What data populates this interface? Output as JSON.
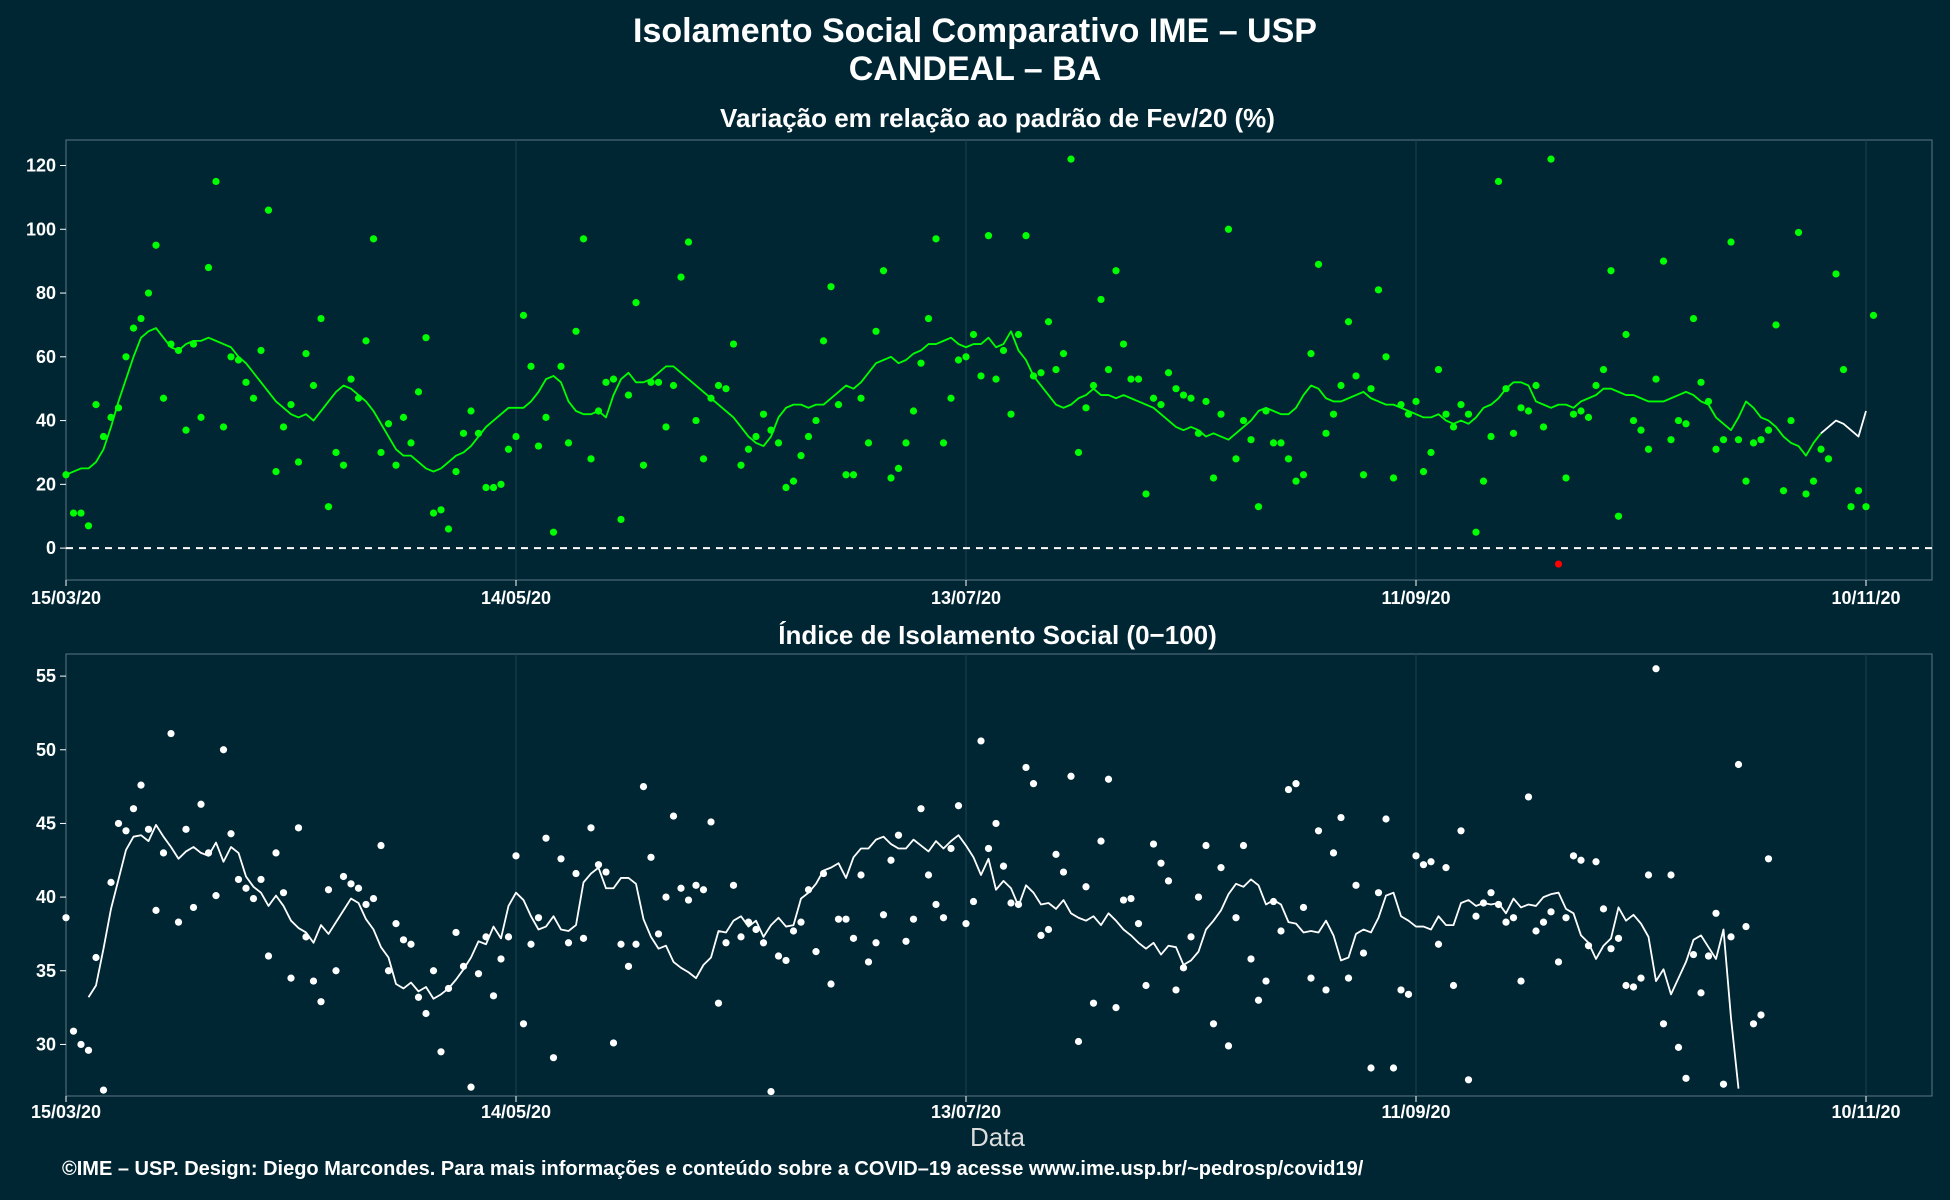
{
  "header": {
    "title_line1": "Isolamento Social Comparativo IME – USP",
    "title_line2": "CANDEAL – BA"
  },
  "footer": {
    "xlabel": "Data",
    "caption": "©IME – USP. Design: Diego Marcondes. Para mais informações e conteúdo sobre a COVID–19 acesse www.ime.usp.br/~pedrosp/covid19/"
  },
  "colors": {
    "background": "#002633",
    "positive": "#00ff00",
    "negative": "#ff0000",
    "index": "#ffffff",
    "grid": "#1c4350",
    "reference_line": "#ffffff"
  },
  "chart_data": [
    {
      "type": "scatter",
      "title": "Variação em relação ao padrão de Fev/20 (%)",
      "xlabel": "",
      "ylabel": "",
      "x_start": "15/03/20",
      "x_tick_labels": [
        "15/03/20",
        "14/05/20",
        "13/07/20",
        "11/09/20",
        "10/11/20"
      ],
      "x_tick_day_offsets": [
        0,
        60,
        120,
        180,
        240
      ],
      "ylim": [
        -10,
        128
      ],
      "y_ticks": [
        0,
        20,
        40,
        60,
        80,
        100,
        120
      ],
      "reference_line_y": 0,
      "grid": "vertical",
      "series": [
        {
          "kind": "points",
          "values": [
            23,
            11,
            11,
            7,
            45,
            35,
            41,
            44,
            60,
            69,
            72,
            80,
            95,
            47,
            64,
            62,
            37,
            64,
            41,
            88,
            115,
            38,
            60,
            59,
            52,
            47,
            62,
            106,
            24,
            38,
            45,
            27,
            61,
            51,
            72,
            13,
            30,
            26,
            53,
            47,
            65,
            97,
            30,
            39,
            26,
            41,
            33,
            49,
            66,
            11,
            12,
            6,
            24,
            36,
            43,
            36,
            19,
            19,
            20,
            31,
            35,
            73,
            57,
            32,
            41,
            5,
            57,
            33,
            68,
            97,
            28,
            43,
            52,
            53,
            9,
            48,
            77,
            26,
            52,
            52,
            38,
            51,
            85,
            96,
            40,
            28,
            47,
            51,
            50,
            64,
            26,
            31,
            35,
            42,
            37,
            33,
            19,
            21,
            29,
            35,
            40,
            65,
            82,
            45,
            23,
            23,
            47,
            33,
            68,
            87,
            22,
            25,
            33,
            43,
            58,
            72,
            97,
            33,
            47,
            59,
            60,
            67,
            54,
            98,
            53,
            62,
            42,
            67,
            98,
            54,
            55,
            71,
            56,
            61,
            122,
            30,
            44,
            51,
            78,
            56,
            87,
            64,
            53,
            53,
            17,
            47,
            45,
            55,
            50,
            48,
            47,
            36,
            46,
            22,
            42,
            100,
            28,
            40,
            34,
            13,
            43,
            33,
            33,
            28,
            21,
            23,
            61,
            89,
            36,
            42,
            51,
            71,
            54,
            23,
            50,
            81,
            60,
            22,
            45,
            42,
            46,
            24,
            30,
            56,
            42,
            38,
            45,
            42,
            5,
            21,
            35,
            115,
            50,
            36,
            44,
            43,
            51,
            38,
            122,
            -5,
            22,
            42,
            43,
            41,
            51,
            56,
            87,
            10,
            67,
            40,
            37,
            31,
            53,
            90,
            34,
            40,
            39,
            72,
            52,
            46,
            31,
            34,
            96,
            34,
            21,
            33,
            34,
            37,
            70,
            18,
            40,
            99,
            17,
            21,
            31,
            28,
            86,
            56,
            13,
            18,
            13,
            73
          ],
          "color": "#00ff00",
          "negative_color": "#ff0000"
        },
        {
          "kind": "line",
          "values": [
            23,
            24,
            25,
            25,
            27,
            31,
            38,
            46,
            53,
            60,
            66,
            68,
            69,
            66,
            63,
            62,
            64,
            65,
            65,
            66,
            65,
            64,
            63,
            60,
            58,
            55,
            52,
            49,
            46,
            44,
            42,
            41,
            42,
            40,
            43,
            46,
            49,
            51,
            50,
            48,
            46,
            43,
            39,
            35,
            31,
            29,
            29,
            27,
            25,
            24,
            25,
            27,
            29,
            30,
            32,
            35,
            38,
            40,
            42,
            44,
            44,
            44,
            46,
            49,
            53,
            54,
            52,
            46,
            43,
            42,
            42,
            43,
            41,
            48,
            53,
            55,
            52,
            52,
            53,
            55,
            57,
            57,
            55,
            53,
            51,
            49,
            47,
            45,
            43,
            41,
            38,
            35,
            33,
            32,
            35,
            41,
            44,
            45,
            45,
            44,
            45,
            45,
            47,
            49,
            51,
            50,
            52,
            55,
            58,
            59,
            60,
            58,
            59,
            61,
            62,
            64,
            64,
            65,
            66,
            64,
            63,
            64,
            64,
            66,
            63,
            64,
            68,
            62,
            59,
            54,
            51,
            48,
            45,
            44,
            45,
            47,
            48,
            50,
            48,
            48,
            47,
            48,
            47,
            46,
            45,
            44,
            42,
            40,
            38,
            37,
            38,
            37,
            35,
            36,
            35,
            34,
            36,
            38,
            40,
            43,
            44,
            43,
            42,
            42,
            44,
            48,
            51,
            50,
            47,
            46,
            46,
            47,
            48,
            49,
            47,
            46,
            45,
            45,
            44,
            43,
            42,
            41,
            41,
            42,
            40,
            39,
            40,
            39,
            41,
            44,
            45,
            47,
            50,
            52,
            52,
            51,
            46,
            45,
            44,
            45,
            45,
            44,
            46,
            47,
            48,
            50,
            50,
            49,
            48,
            48,
            47,
            46,
            46,
            46,
            47,
            48,
            49,
            48,
            46,
            45,
            41,
            39,
            37,
            41,
            46,
            44,
            41,
            40,
            38,
            35,
            33,
            32,
            29,
            33,
            36,
            38,
            40,
            39,
            37,
            35,
            43
          ],
          "color": "#00ff00",
          "tail_color": "#ffffff",
          "tail_points": 7
        }
      ]
    },
    {
      "type": "scatter",
      "title": "Índice de Isolamento Social (0−100)",
      "xlabel": "Data",
      "ylabel": "",
      "x_start": "15/03/20",
      "x_tick_labels": [
        "15/03/20",
        "14/05/20",
        "13/07/20",
        "11/09/20",
        "10/11/20"
      ],
      "x_tick_day_offsets": [
        0,
        60,
        120,
        180,
        240
      ],
      "ylim": [
        26.5,
        56.5
      ],
      "y_ticks": [
        30,
        35,
        40,
        45,
        50,
        55
      ],
      "grid": "vertical",
      "series": [
        {
          "kind": "points",
          "values": [
            38.6,
            30.9,
            30.0,
            29.6,
            35.9,
            26.9,
            41.0,
            45.0,
            44.5,
            46.0,
            47.6,
            44.6,
            39.1,
            43.0,
            51.1,
            38.3,
            44.6,
            39.3,
            46.3,
            43.0,
            40.1,
            50.0,
            44.3,
            41.2,
            40.6,
            39.9,
            41.2,
            36.0,
            43.0,
            40.3,
            34.5,
            44.7,
            37.3,
            34.3,
            32.9,
            40.5,
            35.0,
            41.4,
            40.9,
            40.6,
            39.5,
            39.9,
            43.5,
            35.0,
            38.2,
            37.1,
            36.8,
            33.2,
            32.1,
            35.0,
            29.5,
            33.8,
            37.6,
            35.3,
            27.1,
            34.8,
            37.3,
            33.3,
            35.8,
            37.3,
            42.8,
            31.4,
            36.8,
            38.6,
            44.0,
            29.1,
            42.6,
            36.9,
            41.6,
            37.2,
            44.7,
            42.2,
            41.7,
            30.1,
            36.8,
            35.3,
            36.8,
            47.5,
            42.7,
            37.5,
            40.0,
            45.5,
            40.6,
            39.8,
            40.8,
            40.5,
            45.1,
            32.8,
            36.9,
            40.8,
            37.3,
            38.3,
            37.8,
            36.9,
            26.8,
            36.0,
            35.7,
            37.7,
            38.3,
            40.5,
            36.3,
            41.6,
            34.1,
            38.5,
            38.5,
            37.2,
            41.5,
            35.6,
            36.9,
            38.8,
            42.5,
            44.2,
            37.0,
            38.5,
            46.0,
            41.5,
            39.5,
            38.6,
            43.3,
            46.2,
            38.2,
            39.7,
            50.6,
            43.3,
            45.0,
            42.1,
            39.6,
            39.5,
            48.8,
            47.7,
            37.4,
            37.8,
            42.9,
            41.7,
            48.2,
            30.2,
            40.7,
            32.8,
            43.8,
            48.0,
            32.5,
            39.8,
            39.9,
            38.2,
            34.0,
            43.6,
            42.3,
            41.1,
            33.7,
            35.2,
            37.3,
            40.0,
            43.5,
            31.4,
            42.0,
            29.9,
            38.6,
            43.5,
            35.8,
            33.0,
            34.3,
            39.7,
            37.7,
            47.3,
            47.7,
            39.3,
            34.5,
            44.5,
            33.7,
            43.0,
            45.4,
            34.5,
            40.8,
            36.2,
            28.4,
            40.3,
            45.3,
            28.4,
            33.7,
            33.4,
            42.8,
            42.2,
            42.4,
            36.8,
            42.0,
            34.0,
            44.5,
            27.6,
            38.7,
            39.6,
            40.3,
            39.5,
            38.3,
            38.6,
            34.3,
            46.8,
            37.7,
            38.3,
            39.0,
            35.6,
            38.6,
            42.8,
            42.5,
            36.7,
            42.4,
            39.2,
            36.5,
            37.2,
            34.0,
            33.9,
            34.5,
            41.5,
            55.5,
            31.4,
            41.5,
            29.8,
            27.7,
            36.1,
            33.5,
            36.0,
            38.9,
            27.3,
            37.3,
            49.0,
            38.0,
            31.4,
            32.0,
            42.6
          ],
          "color": "#ffffff"
        },
        {
          "kind": "line",
          "start_offset": 3,
          "values": [
            33.2,
            34.0,
            36.5,
            39.2,
            41.2,
            43.2,
            44.1,
            44.2,
            43.8,
            44.9,
            44.1,
            43.4,
            42.6,
            43.1,
            43.4,
            43.0,
            42.8,
            43.7,
            42.4,
            43.4,
            43.0,
            41.4,
            40.7,
            40.3,
            39.4,
            40.1,
            39.4,
            38.4,
            37.9,
            37.6,
            36.9,
            38.1,
            37.5,
            38.3,
            39.1,
            39.9,
            39.6,
            38.5,
            37.8,
            36.6,
            35.9,
            34.1,
            33.8,
            34.2,
            33.6,
            33.9,
            33.1,
            33.4,
            33.8,
            34.4,
            35.1,
            35.9,
            37.0,
            36.8,
            38.0,
            37.2,
            39.4,
            40.3,
            39.8,
            38.7,
            37.8,
            38.0,
            38.7,
            37.8,
            37.7,
            38.1,
            41.0,
            41.6,
            42.0,
            40.6,
            40.6,
            41.3,
            41.3,
            40.9,
            38.5,
            37.3,
            36.5,
            36.7,
            35.6,
            35.2,
            34.9,
            34.5,
            35.4,
            35.9,
            37.7,
            37.6,
            38.4,
            38.7,
            38.0,
            38.4,
            37.3,
            38.1,
            38.6,
            38.0,
            38.1,
            39.9,
            40.3,
            40.9,
            41.8,
            42.0,
            42.3,
            41.3,
            42.7,
            43.3,
            43.3,
            43.9,
            44.1,
            43.6,
            43.3,
            43.3,
            43.9,
            43.5,
            43.1,
            43.8,
            43.3,
            43.8,
            44.2,
            43.5,
            42.7,
            41.5,
            42.6,
            40.5,
            41.1,
            40.6,
            39.4,
            40.8,
            40.3,
            39.5,
            39.6,
            39.2,
            39.8,
            38.9,
            38.6,
            38.4,
            38.7,
            38.1,
            38.9,
            38.4,
            37.8,
            37.4,
            36.9,
            36.5,
            36.9,
            36.1,
            36.7,
            36.6,
            35.4,
            35.7,
            36.3,
            37.8,
            38.4,
            39.1,
            40.2,
            40.9,
            40.7,
            41.2,
            40.8,
            39.5,
            39.8,
            39.5,
            38.3,
            38.2,
            37.6,
            37.7,
            37.6,
            38.4,
            37.4,
            35.7,
            35.9,
            37.5,
            37.8,
            37.6,
            38.6,
            40.1,
            40.3,
            38.7,
            38.4,
            38.0,
            38.0,
            37.8,
            38.7,
            38.1,
            38.1,
            39.6,
            39.8,
            39.4,
            39.6,
            39.5,
            39.6,
            38.9,
            39.9,
            39.3,
            39.5,
            39.4,
            40.0,
            40.2,
            40.3,
            39.2,
            38.9,
            37.4,
            36.9,
            35.8,
            36.7,
            37.2,
            39.3,
            38.4,
            38.8,
            38.2,
            37.3,
            34.3,
            35.1,
            33.4,
            34.5,
            35.6,
            37.1,
            37.4,
            36.6,
            35.8,
            37.8,
            31.8,
            27.0
          ],
          "color": "#ffffff"
        }
      ]
    }
  ]
}
